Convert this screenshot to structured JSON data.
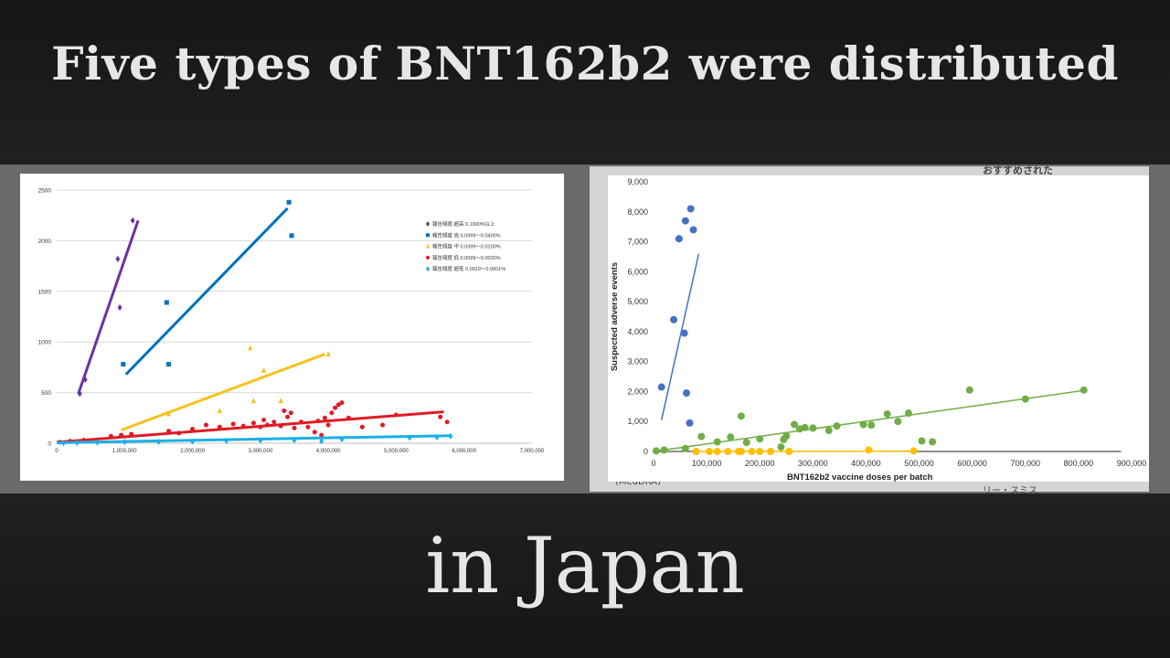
{
  "title_line1": "Five types of BNT162b2 were distributed",
  "title_line2": "in Japan",
  "background_fragments": [
    "おすすめされた",
    "(MedDRA)",
    "リー・スミス"
  ],
  "colors": {
    "very_high": "#7030a0",
    "high": "#0070c0",
    "medium": "#f5c11a",
    "low": "#e01b24",
    "very_low": "#1ab0e8",
    "blue_batch": "#4472c4",
    "green_batch": "#70ad47",
    "yellow_batch": "#ffc000"
  },
  "chart_data": [
    {
      "type": "scatter",
      "xlim": [
        0,
        7000000
      ],
      "ylim": [
        0,
        2500
      ],
      "x_ticks": [
        0,
        1000000,
        2000000,
        3000000,
        4000000,
        5000000,
        6000000,
        7000000
      ],
      "x_tick_labels": [
        "0",
        "1,000,000",
        "2,000,000",
        "3,000,000",
        "4,000,000",
        "5,000,000",
        "6,000,000",
        "7,000,000"
      ],
      "y_ticks": [
        0,
        500,
        1000,
        1500,
        2000,
        2500
      ],
      "y_tick_labels": [
        "0",
        "500",
        "1000",
        "1500",
        "2000",
        "2500"
      ],
      "grid": true,
      "legend": "right",
      "series": [
        {
          "name": "報告頻度 超高 0.1000%以上",
          "color_key": "very_high",
          "marker": "diamond",
          "x": [
            340000,
            420000,
            900000,
            930000,
            1120000
          ],
          "y": [
            490,
            630,
            1820,
            1340,
            2200
          ],
          "trend": [
            [
              320000,
              490
            ],
            [
              1200000,
              2200
            ]
          ]
        },
        {
          "name": "報告頻度 高 0.0999～0.0400%",
          "color_key": "high",
          "marker": "square",
          "x": [
            980000,
            1620000,
            1650000,
            3420000,
            3460000
          ],
          "y": [
            780,
            1390,
            780,
            2380,
            2050
          ],
          "trend": [
            [
              1020000,
              680
            ],
            [
              3400000,
              2320
            ]
          ]
        },
        {
          "name": "報告頻度 中 0.0399～0.0100%",
          "color_key": "medium",
          "marker": "triangle",
          "x": [
            1650000,
            2400000,
            2850000,
            2900000,
            3050000,
            3300000,
            4000000
          ],
          "y": [
            290,
            320,
            940,
            420,
            720,
            420,
            880
          ],
          "trend": [
            [
              950000,
              130
            ],
            [
              3950000,
              880
            ]
          ]
        },
        {
          "name": "報告頻度 低 0.0099～0.0020%",
          "color_key": "low",
          "marker": "circle",
          "x": [
            50000,
            200000,
            400000,
            800000,
            950000,
            1100000,
            1650000,
            1800000,
            2000000,
            2200000,
            2400000,
            2600000,
            2750000,
            2900000,
            3000000,
            3050000,
            3100000,
            3200000,
            3300000,
            3350000,
            3400000,
            3450000,
            3500000,
            3600000,
            3700000,
            3800000,
            3850000,
            3900000,
            3950000,
            4000000,
            4050000,
            4100000,
            4150000,
            4200000,
            4300000,
            4500000,
            4800000,
            5000000,
            5650000,
            5750000
          ],
          "y": [
            10,
            20,
            30,
            70,
            80,
            90,
            120,
            100,
            140,
            180,
            160,
            190,
            170,
            200,
            160,
            230,
            180,
            210,
            170,
            320,
            260,
            300,
            150,
            210,
            160,
            110,
            220,
            80,
            250,
            180,
            300,
            350,
            380,
            400,
            250,
            160,
            180,
            280,
            260,
            210
          ],
          "trend": [
            [
              0,
              10
            ],
            [
              5700000,
              310
            ]
          ]
        },
        {
          "name": "報告頻度 超低 0.0019～0.0001%",
          "color_key": "very_low",
          "marker": "diamond",
          "x": [
            100000,
            300000,
            600000,
            1000000,
            1500000,
            2000000,
            2500000,
            3000000,
            3500000,
            3900000,
            4200000,
            5200000,
            5600000,
            5800000
          ],
          "y": [
            2,
            5,
            8,
            12,
            15,
            18,
            25,
            28,
            30,
            20,
            40,
            55,
            60,
            70
          ],
          "trend": [
            [
              0,
              5
            ],
            [
              5800000,
              75
            ]
          ]
        }
      ]
    },
    {
      "type": "scatter",
      "xlabel": "BNT162b2 vaccine doses per batch",
      "ylabel": "Suspected adverse events",
      "xlim": [
        0,
        900000
      ],
      "ylim": [
        0,
        9000
      ],
      "x_ticks": [
        0,
        100000,
        200000,
        300000,
        400000,
        500000,
        600000,
        700000,
        800000,
        900000
      ],
      "x_tick_labels": [
        "0",
        "100,000",
        "200,000",
        "300,000",
        "400,000",
        "500,000",
        "600,000",
        "700,000",
        "800,000",
        "900,000"
      ],
      "y_ticks": [
        0,
        1000,
        2000,
        3000,
        4000,
        5000,
        6000,
        7000,
        8000,
        9000
      ],
      "y_tick_labels": [
        "0",
        "1,000",
        "2,000",
        "3,000",
        "4,000",
        "5,000",
        "6,000",
        "7,000",
        "8,000",
        "9,000"
      ],
      "grid": false,
      "series": [
        {
          "color_key": "blue_batch",
          "x": [
            15000,
            38000,
            48000,
            60000,
            70000,
            75000,
            58000,
            62000,
            68000
          ],
          "y": [
            2150,
            4400,
            7100,
            7700,
            8100,
            7400,
            3950,
            1950,
            950
          ],
          "trend": [
            [
              15000,
              1050
            ],
            [
              85000,
              6600
            ]
          ]
        },
        {
          "color_key": "green_batch",
          "x": [
            5000,
            20000,
            60000,
            90000,
            120000,
            145000,
            165000,
            175000,
            200000,
            240000,
            245000,
            250000,
            265000,
            275000,
            285000,
            300000,
            330000,
            345000,
            395000,
            410000,
            440000,
            460000,
            480000,
            505000,
            525000,
            595000,
            700000,
            810000
          ],
          "y": [
            20,
            50,
            100,
            500,
            320,
            480,
            1180,
            300,
            420,
            150,
            400,
            520,
            900,
            750,
            800,
            780,
            700,
            850,
            900,
            880,
            1250,
            1000,
            1280,
            350,
            320,
            2050,
            1750,
            2050
          ],
          "trend": [
            [
              0,
              0
            ],
            [
              815000,
              2050
            ]
          ]
        },
        {
          "color_key": "yellow_batch",
          "x": [
            80000,
            105000,
            120000,
            140000,
            160000,
            165000,
            185000,
            200000,
            220000,
            255000,
            405000,
            490000
          ],
          "y": [
            0,
            0,
            0,
            0,
            0,
            0,
            0,
            0,
            0,
            0,
            50,
            20
          ],
          "trend": [
            [
              80000,
              0
            ],
            [
              495000,
              10
            ]
          ]
        }
      ]
    }
  ]
}
